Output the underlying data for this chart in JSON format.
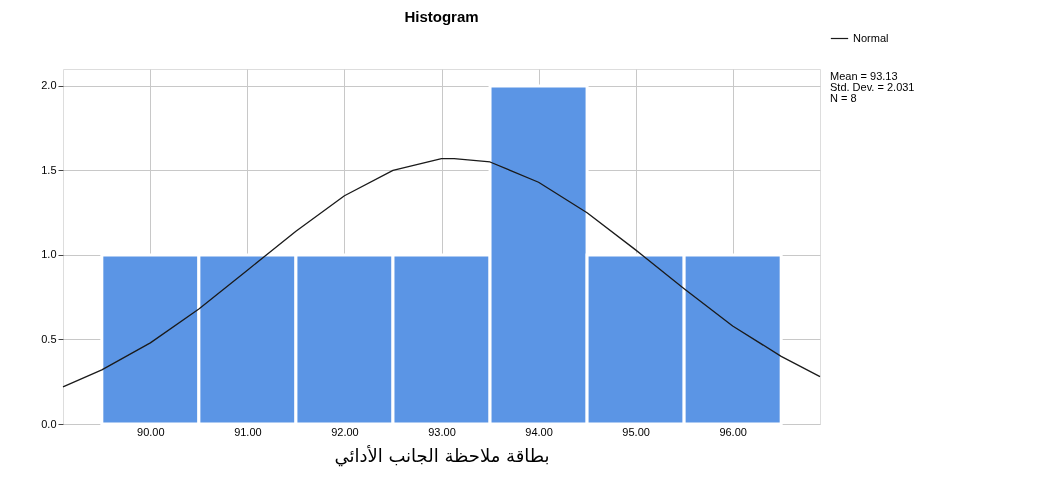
{
  "chart_data": {
    "type": "histogram",
    "title": "Histogram",
    "xlabel": "بطاقة ملاحظة الجانب الأدائي",
    "bins": [
      89.5,
      90.5,
      91.5,
      92.5,
      93.5,
      94.5,
      95.5,
      96.5
    ],
    "values": [
      1,
      1,
      1,
      1,
      2,
      1,
      1
    ],
    "color": "#5b95e5",
    "series": [
      {
        "name": "Normal",
        "type": "line",
        "color": "#1a1a1a",
        "x": [
          89.1,
          89.5,
          90,
          90.5,
          91,
          91.5,
          92,
          92.5,
          93,
          93.13,
          93.5,
          94,
          94.5,
          95,
          95.5,
          96,
          96.5,
          96.9
        ],
        "values": [
          0.22,
          0.32,
          0.48,
          0.68,
          0.91,
          1.14,
          1.35,
          1.5,
          1.57,
          1.57,
          1.55,
          1.43,
          1.25,
          1.03,
          0.8,
          0.58,
          0.4,
          0.28
        ]
      }
    ],
    "xlim": [
      89.1,
      96.9
    ],
    "xticks": [
      {
        "value": 90,
        "label": "90.00"
      },
      {
        "value": 91,
        "label": "91.00"
      },
      {
        "value": 92,
        "label": "92.00"
      },
      {
        "value": 93,
        "label": "93.00"
      },
      {
        "value": 94,
        "label": "94.00"
      },
      {
        "value": 95,
        "label": "95.00"
      },
      {
        "value": 96,
        "label": "96.00"
      }
    ],
    "ylim": [
      0,
      2.1
    ],
    "yticks": [
      {
        "value": 0,
        "label": "0.0"
      },
      {
        "value": 0.5,
        "label": "0.5"
      },
      {
        "value": 1,
        "label": "1.0"
      },
      {
        "value": 1.5,
        "label": "1.5"
      },
      {
        "value": 2,
        "label": "2.0"
      }
    ],
    "annotations": [
      "Mean = 93.13",
      "Std. Dev. = 2.031",
      "N = 8"
    ],
    "grid": true,
    "legend": "top right"
  }
}
